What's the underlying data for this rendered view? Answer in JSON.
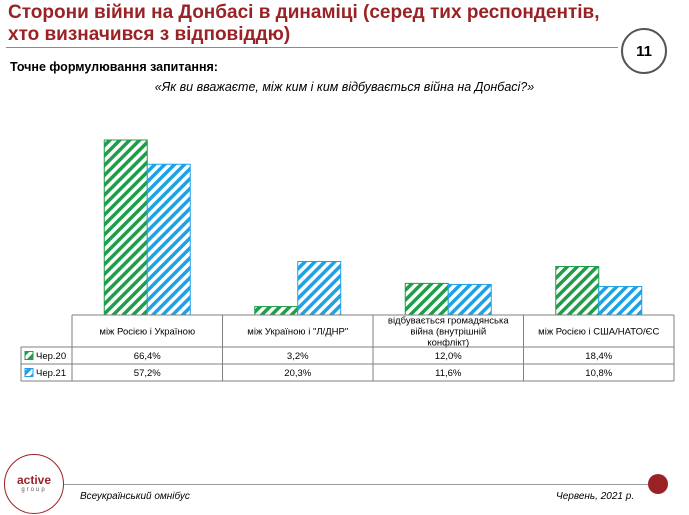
{
  "header": {
    "title": "Сторони війни на Донбасі в динаміці (серед тих респондентів, хто визначився з відповіддю)",
    "page_number": "11"
  },
  "question": {
    "label": "Точне формулювання запитання:",
    "text": "«Як ви вважаєте, між ким і ким відбувається війна на Донбасі?»"
  },
  "chart_data": {
    "type": "bar",
    "categories": [
      "між Росією і Україною",
      "між Україною і \"Л/ДНР\"",
      "відбувається громадянська війна (внутрішній конфлікт)",
      "між Росією і США/НАТО/ЄС"
    ],
    "series": [
      {
        "name": "Чер.20",
        "values": [
          66.4,
          3.2,
          12.0,
          18.4
        ],
        "labels": [
          "66,4%",
          "3,2%",
          "12,0%",
          "18,4%"
        ],
        "color": "#1f9e4a"
      },
      {
        "name": "Чер.21",
        "values": [
          57.2,
          20.3,
          11.6,
          10.8
        ],
        "labels": [
          "57,2%",
          "20,3%",
          "11,6%",
          "10,8%"
        ],
        "color": "#1ea1e6"
      }
    ],
    "ylim": [
      0,
      70
    ],
    "grid": false,
    "legend": "data-table"
  },
  "footer": {
    "left": "Всеукраїнський омнібус",
    "right": "Червень, 2021 р."
  },
  "logo": {
    "main": "active",
    "sub": "group"
  }
}
